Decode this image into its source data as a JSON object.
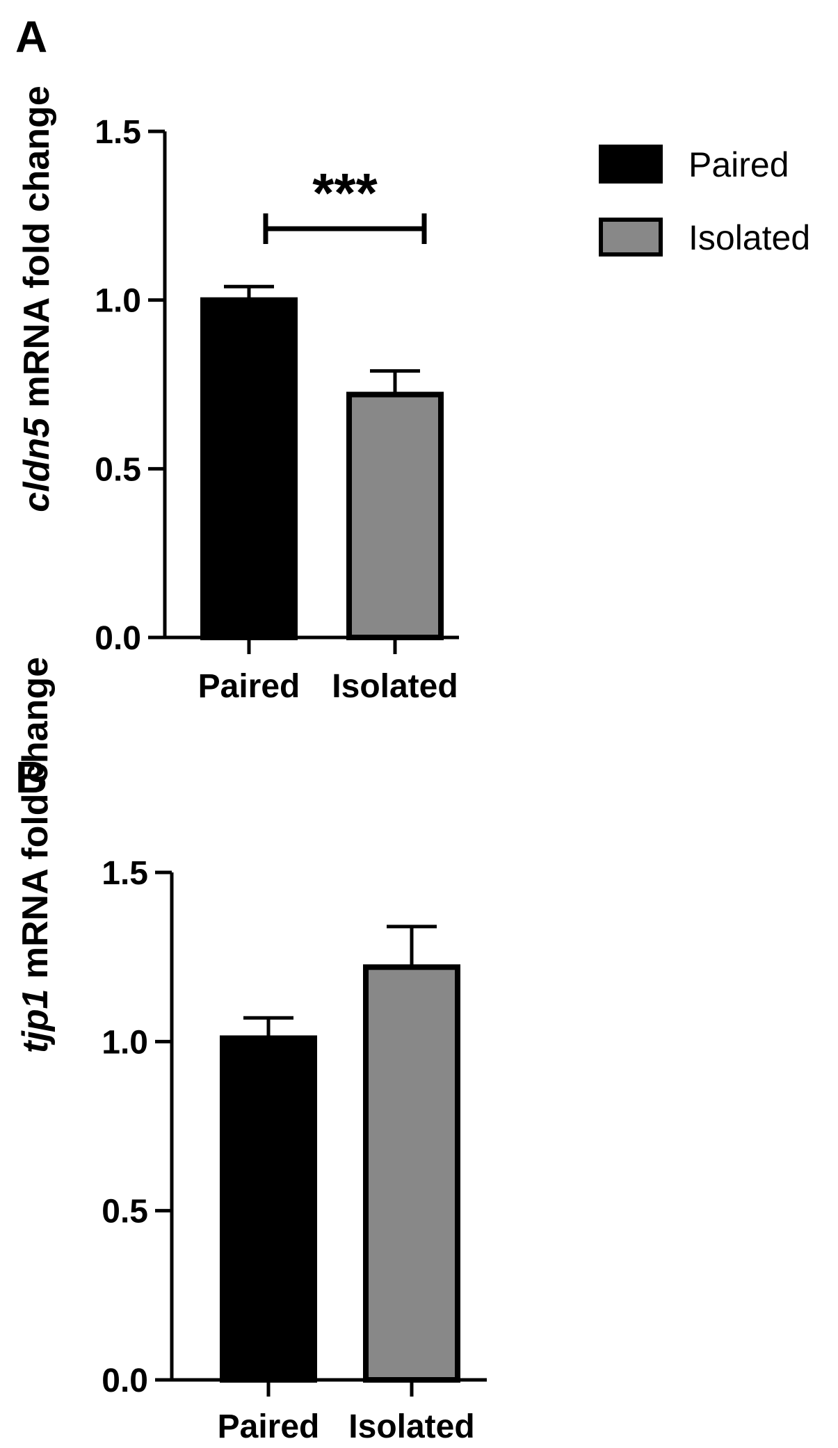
{
  "legend": [
    {
      "label": "Paired",
      "color": "#000000"
    },
    {
      "label": "Isolated",
      "color": "#888888"
    }
  ],
  "chart_data": [
    {
      "panel": "A",
      "type": "bar",
      "categories": [
        "Paired",
        "Isolated"
      ],
      "values": [
        1.0,
        0.72
      ],
      "errors": [
        0.04,
        0.07
      ],
      "colors": [
        "#000000",
        "#888888"
      ],
      "ylabel_italic": "cldn5",
      "ylabel_rest": " mRNA fold change",
      "ylim": [
        0,
        1.5
      ],
      "yticks": [
        "0.0",
        "0.5",
        "1.0",
        "1.5"
      ],
      "significance": "***"
    },
    {
      "panel": "B",
      "type": "bar",
      "categories": [
        "Paired",
        "Isolated"
      ],
      "values": [
        1.01,
        1.22
      ],
      "errors": [
        0.06,
        0.12
      ],
      "colors": [
        "#000000",
        "#888888"
      ],
      "ylabel_italic": "tjp1",
      "ylabel_rest": " mRNA fold change",
      "ylim": [
        0,
        1.5
      ],
      "yticks": [
        "0.0",
        "0.5",
        "1.0",
        "1.5"
      ],
      "significance": ""
    }
  ]
}
